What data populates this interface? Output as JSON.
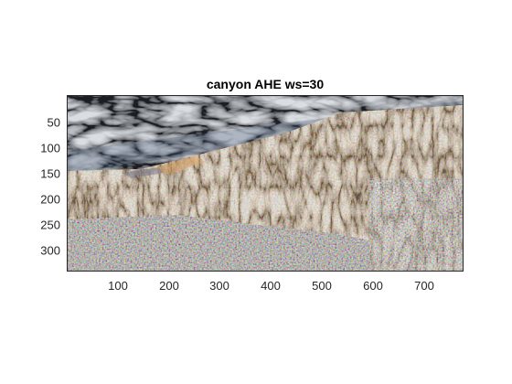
{
  "figure": {
    "title": "canyon AHE ws=30"
  },
  "image": {
    "subject": "canyon-landscape",
    "colors": {
      "sky": "#8a8d92",
      "cliff": "#b8a58c",
      "ground": "#9a9590",
      "frame": "#262626"
    }
  },
  "axes": {
    "x": {
      "range": [
        0.5,
        775.5
      ],
      "ticks": [
        100,
        200,
        300,
        400,
        500,
        600,
        700
      ],
      "tick_labels": [
        "100",
        "200",
        "300",
        "400",
        "500",
        "600",
        "700"
      ]
    },
    "y": {
      "range": [
        0.5,
        345.5
      ],
      "direction": "reversed",
      "ticks": [
        50,
        100,
        150,
        200,
        250,
        300
      ],
      "tick_labels": [
        "50",
        "100",
        "150",
        "200",
        "250",
        "300"
      ]
    }
  }
}
